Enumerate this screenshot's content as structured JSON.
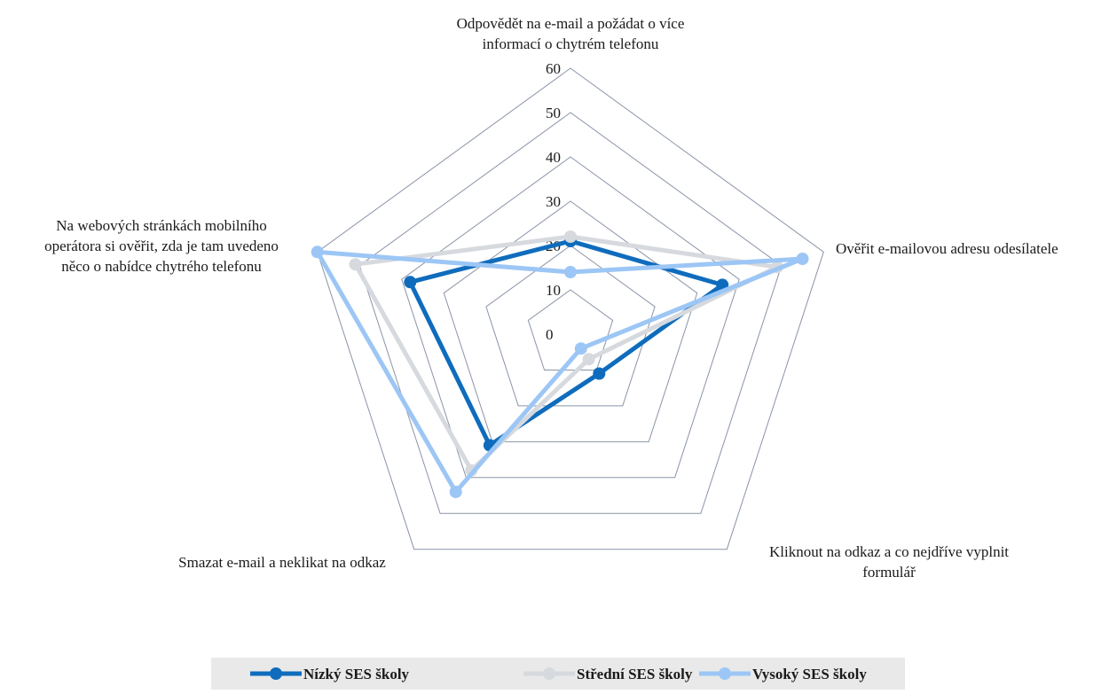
{
  "chart_data": {
    "type": "radar",
    "categories": [
      [
        "Odpovědět na e-mail a požádat o více",
        "informací o chytrém telefonu"
      ],
      [
        "Ověřit e-mailovou adresu odesílatele"
      ],
      [
        "Kliknout na odkaz a co nejdříve vyplnit",
        "formulář"
      ],
      [
        "Smazat e-mail a neklikat na odkaz"
      ],
      [
        "Na webových stránkách mobilního",
        "operátora si ověřit, zda je tam uvedeno",
        "něco o nabídce chytrého telefonu"
      ]
    ],
    "series": [
      {
        "name": "Nízký SES školy",
        "color": "#0f6cbd",
        "values": [
          21,
          36,
          11,
          31,
          38
        ]
      },
      {
        "name": "Střední SES školy",
        "color": "#d6d9de",
        "values": [
          22,
          49,
          7,
          38,
          51
        ]
      },
      {
        "name": "Vysoký SES školy",
        "color": "#9cc6f5",
        "values": [
          14,
          55,
          4,
          44,
          60
        ]
      }
    ],
    "rlim": [
      0,
      60
    ],
    "ticks": [
      "0",
      "10",
      "20",
      "30",
      "40",
      "50",
      "60"
    ],
    "grid": true,
    "legend_position": "bottom",
    "grid_color": "#8a94a6"
  }
}
